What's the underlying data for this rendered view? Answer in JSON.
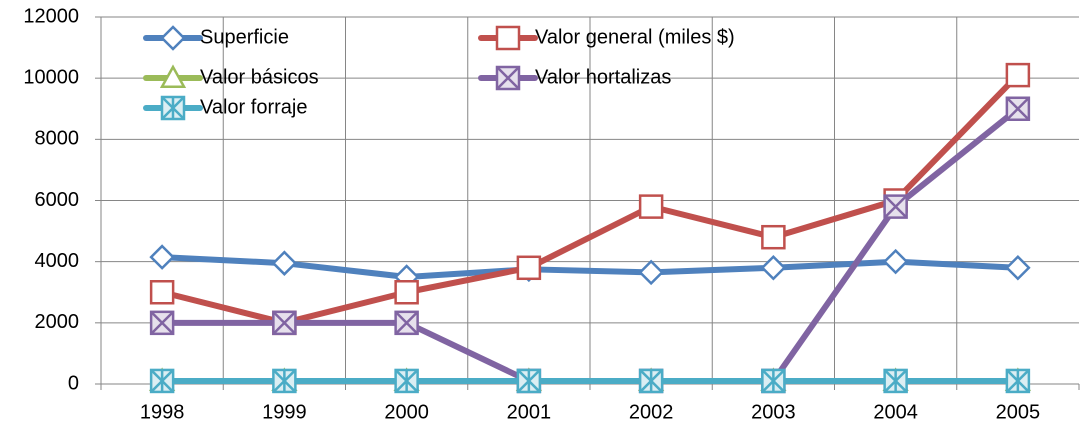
{
  "chart_data": {
    "type": "line",
    "categories": [
      "1998",
      "1999",
      "2000",
      "2001",
      "2002",
      "2003",
      "2004",
      "2005"
    ],
    "series": [
      {
        "name": "Superficie",
        "color": "#4f81bd",
        "marker": "diamond",
        "values": [
          4150,
          3950,
          3500,
          3750,
          3650,
          3800,
          4000,
          3800
        ]
      },
      {
        "name": "Valor general (miles $)",
        "color": "#c0504d",
        "marker": "square",
        "values": [
          3000,
          2000,
          3000,
          3800,
          5800,
          4800,
          6000,
          10100
        ]
      },
      {
        "name": "Valor básicos",
        "color": "#9bbb59",
        "marker": "triangle",
        "values": [
          100,
          100,
          100,
          100,
          100,
          100,
          100,
          100
        ]
      },
      {
        "name": "Valor hortalizas",
        "color": "#8064a2",
        "marker": "x",
        "values": [
          2000,
          2000,
          2000,
          100,
          100,
          100,
          5800,
          9000
        ]
      },
      {
        "name": "Valor forraje",
        "color": "#4bacc6",
        "marker": "star",
        "values": [
          100,
          100,
          100,
          100,
          100,
          100,
          100,
          100
        ]
      }
    ],
    "ylim": [
      0,
      12000
    ],
    "yticks": [
      0,
      2000,
      4000,
      6000,
      8000,
      10000,
      12000
    ],
    "grid": true,
    "legend": "top"
  }
}
